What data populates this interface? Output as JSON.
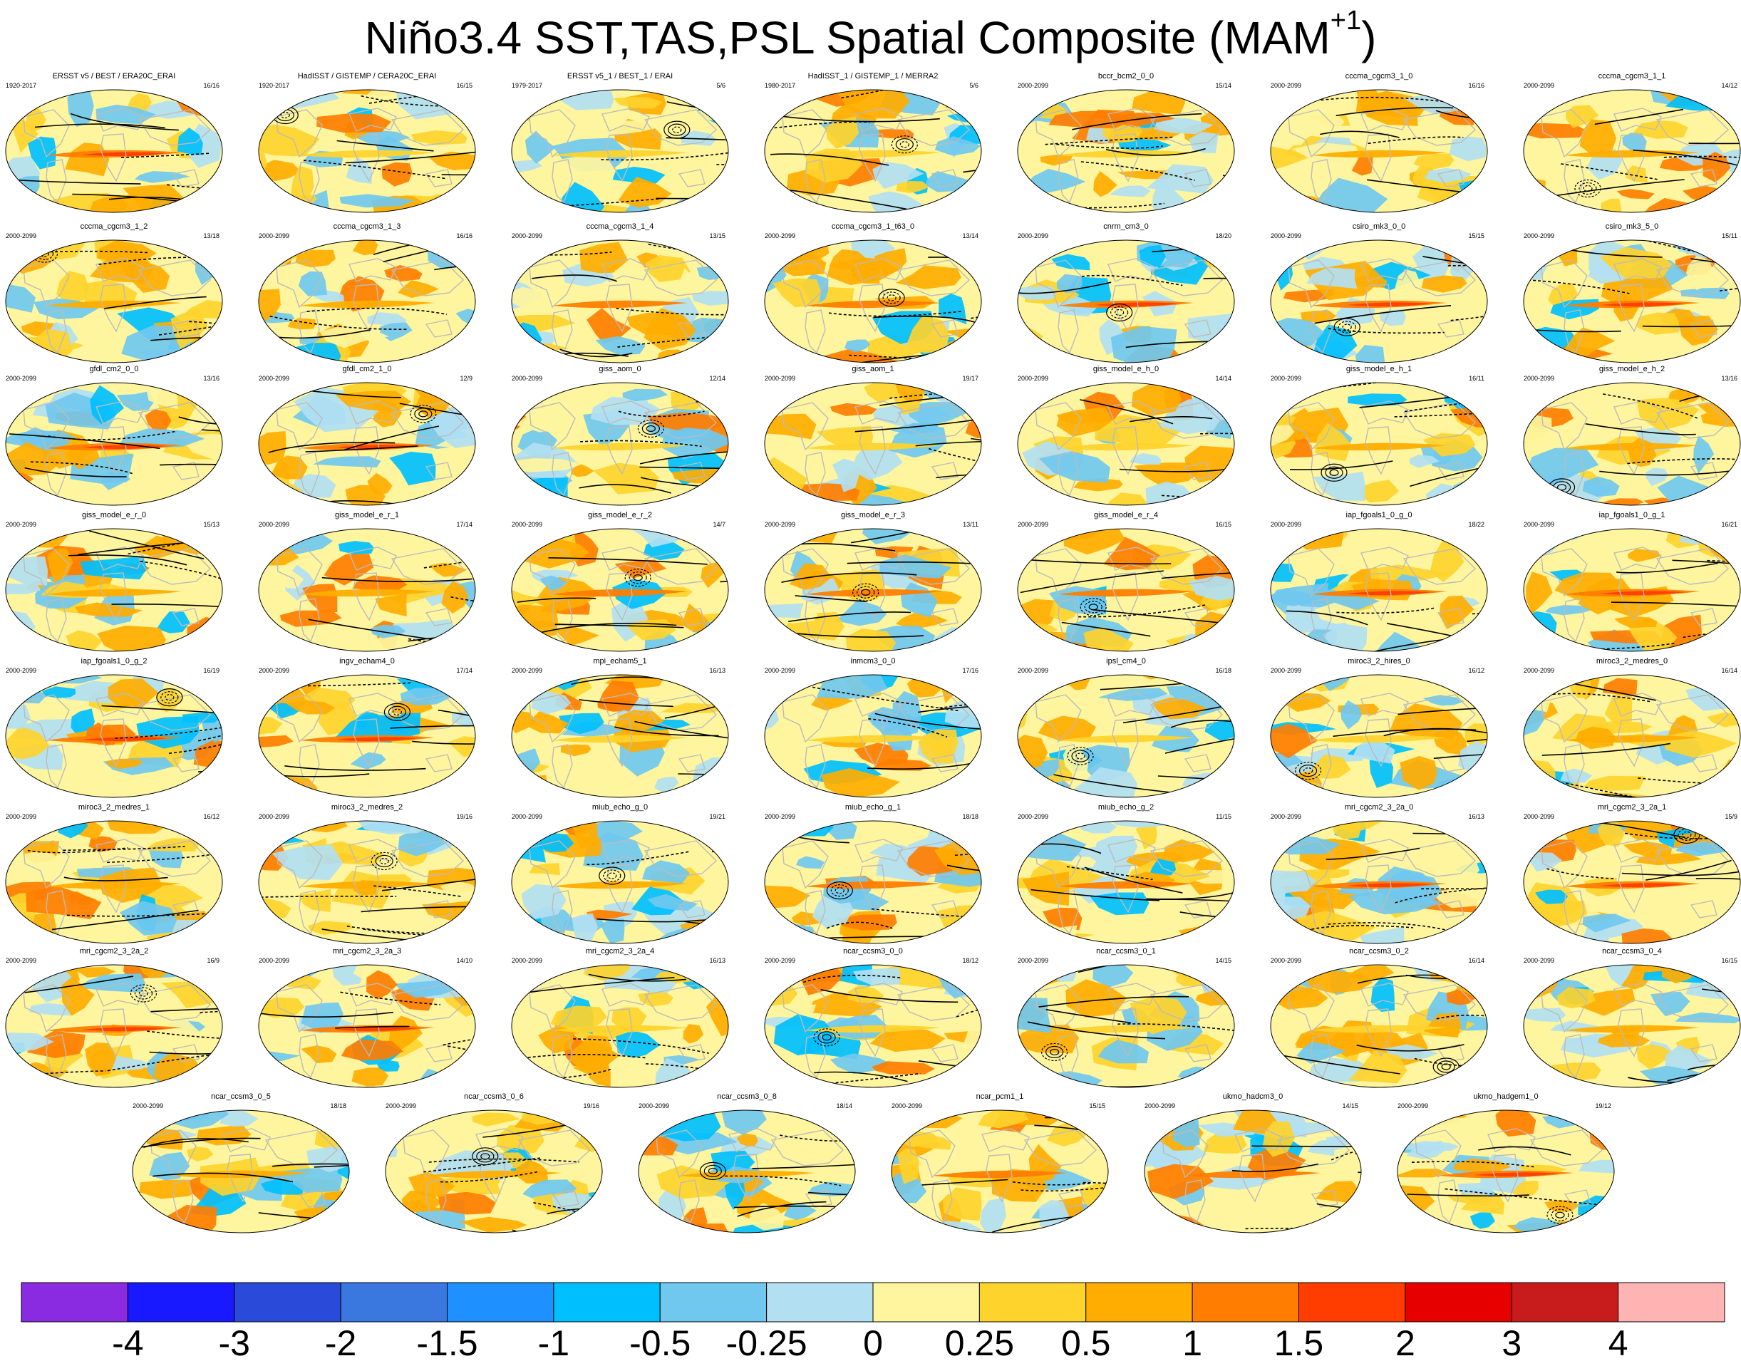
{
  "title_main": "Niño3.4 SST,TAS,PSL Spatial Composite (MAM",
  "title_sup": "+1",
  "title_close": ")",
  "colors": {
    "boxes": [
      "#8a2be2",
      "#1919ff",
      "#2a4bd9",
      "#3a78df",
      "#1e90ff",
      "#00bfff",
      "#70c8ef",
      "#b2dff2",
      "#fef59e",
      "#fed32c",
      "#ffad00",
      "#ff7d00",
      "#ff3d00",
      "#e60000",
      "#c81c1c",
      "#ffb4b4"
    ],
    "land": "#ffffff",
    "coast": "#bbbbbb",
    "contour": "#000000"
  },
  "chart_data": {
    "type": "heatmap",
    "title": "Niño3.4 SST,TAS,PSL Spatial Composite (MAM+1)",
    "colorbar_labels": [
      "-4",
      "-3",
      "-2",
      "-1.5",
      "-1",
      "-0.5",
      "-0.25",
      "0",
      "0.25",
      "0.5",
      "1",
      "1.5",
      "2",
      "3",
      "4"
    ],
    "panels": [
      {
        "name": "ERSST v5 / BEST / ERA20C_ERAI",
        "years": "1920-2017",
        "counts": "16/16"
      },
      {
        "name": "HadISST / GISTEMP / CERA20C_ERAI",
        "years": "1920-2017",
        "counts": "16/15"
      },
      {
        "name": "ERSST v5_1 / BEST_1 / ERAI",
        "years": "1979-2017",
        "counts": "5/6"
      },
      {
        "name": "HadISST_1 / GISTEMP_1 / MERRA2",
        "years": "1980-2017",
        "counts": "5/6"
      },
      {
        "name": "bccr_bcm2_0_0",
        "years": "2000-2099",
        "counts": "15/14"
      },
      {
        "name": "cccma_cgcm3_1_0",
        "years": "2000-2099",
        "counts": "16/16"
      },
      {
        "name": "cccma_cgcm3_1_1",
        "years": "2000-2099",
        "counts": "14/12"
      },
      {
        "name": "cccma_cgcm3_1_2",
        "years": "2000-2099",
        "counts": "13/18"
      },
      {
        "name": "cccma_cgcm3_1_3",
        "years": "2000-2099",
        "counts": "16/16"
      },
      {
        "name": "cccma_cgcm3_1_4",
        "years": "2000-2099",
        "counts": "13/15"
      },
      {
        "name": "cccma_cgcm3_1_t63_0",
        "years": "2000-2099",
        "counts": "13/14"
      },
      {
        "name": "cnrm_cm3_0",
        "years": "2000-2099",
        "counts": "18/20"
      },
      {
        "name": "csiro_mk3_0_0",
        "years": "2000-2099",
        "counts": "15/15"
      },
      {
        "name": "csiro_mk3_5_0",
        "years": "2000-2099",
        "counts": "15/11"
      },
      {
        "name": "gfdl_cm2_0_0",
        "years": "2000-2099",
        "counts": "13/16"
      },
      {
        "name": "gfdl_cm2_1_0",
        "years": "2000-2099",
        "counts": "12/9"
      },
      {
        "name": "giss_aom_0",
        "years": "2000-2099",
        "counts": "12/14"
      },
      {
        "name": "giss_aom_1",
        "years": "2000-2099",
        "counts": "19/17"
      },
      {
        "name": "giss_model_e_h_0",
        "years": "2000-2099",
        "counts": "14/14"
      },
      {
        "name": "giss_model_e_h_1",
        "years": "2000-2099",
        "counts": "16/11"
      },
      {
        "name": "giss_model_e_h_2",
        "years": "2000-2099",
        "counts": "13/16"
      },
      {
        "name": "giss_model_e_r_0",
        "years": "2000-2099",
        "counts": "15/13"
      },
      {
        "name": "giss_model_e_r_1",
        "years": "2000-2099",
        "counts": "17/14"
      },
      {
        "name": "giss_model_e_r_2",
        "years": "2000-2099",
        "counts": "14/7"
      },
      {
        "name": "giss_model_e_r_3",
        "years": "2000-2099",
        "counts": "13/11"
      },
      {
        "name": "giss_model_e_r_4",
        "years": "2000-2099",
        "counts": "16/15"
      },
      {
        "name": "iap_fgoals1_0_g_0",
        "years": "2000-2099",
        "counts": "18/22"
      },
      {
        "name": "iap_fgoals1_0_g_1",
        "years": "2000-2099",
        "counts": "16/21"
      },
      {
        "name": "iap_fgoals1_0_g_2",
        "years": "2000-2099",
        "counts": "16/19"
      },
      {
        "name": "ingv_echam4_0",
        "years": "2000-2099",
        "counts": "17/14"
      },
      {
        "name": "mpi_echam5_1",
        "years": "2000-2099",
        "counts": "16/13"
      },
      {
        "name": "inmcm3_0_0",
        "years": "2000-2099",
        "counts": "17/16"
      },
      {
        "name": "ipsl_cm4_0",
        "years": "2000-2099",
        "counts": "16/18"
      },
      {
        "name": "miroc3_2_hires_0",
        "years": "2000-2099",
        "counts": "16/12"
      },
      {
        "name": "miroc3_2_medres_0",
        "years": "2000-2099",
        "counts": "16/14"
      },
      {
        "name": "miroc3_2_medres_1",
        "years": "2000-2099",
        "counts": "16/12"
      },
      {
        "name": "miroc3_2_medres_2",
        "years": "2000-2099",
        "counts": "19/16"
      },
      {
        "name": "miub_echo_g_0",
        "years": "2000-2099",
        "counts": "19/21"
      },
      {
        "name": "miub_echo_g_1",
        "years": "2000-2099",
        "counts": "18/18"
      },
      {
        "name": "miub_echo_g_2",
        "years": "2000-2099",
        "counts": "11/15"
      },
      {
        "name": "mri_cgcm2_3_2a_0",
        "years": "2000-2099",
        "counts": "16/13"
      },
      {
        "name": "mri_cgcm2_3_2a_1",
        "years": "2000-2099",
        "counts": "15/9"
      },
      {
        "name": "mri_cgcm2_3_2a_2",
        "years": "2000-2099",
        "counts": "16/9"
      },
      {
        "name": "mri_cgcm2_3_2a_3",
        "years": "2000-2099",
        "counts": "14/10"
      },
      {
        "name": "mri_cgcm2_3_2a_4",
        "years": "2000-2099",
        "counts": "16/13"
      },
      {
        "name": "ncar_ccsm3_0_0",
        "years": "2000-2099",
        "counts": "18/12"
      },
      {
        "name": "ncar_ccsm3_0_1",
        "years": "2000-2099",
        "counts": "14/15"
      },
      {
        "name": "ncar_ccsm3_0_2",
        "years": "2000-2099",
        "counts": "16/14"
      },
      {
        "name": "ncar_ccsm3_0_4",
        "years": "2000-2099",
        "counts": "16/15"
      },
      {
        "name": "ncar_ccsm3_0_5",
        "years": "2000-2099",
        "counts": "18/18"
      },
      {
        "name": "ncar_ccsm3_0_6",
        "years": "2000-2099",
        "counts": "19/16"
      },
      {
        "name": "ncar_ccsm3_0_8",
        "years": "2000-2099",
        "counts": "18/14"
      },
      {
        "name": "ncar_pcm1_1",
        "years": "2000-2099",
        "counts": "15/15"
      },
      {
        "name": "ukmo_hadcm3_0",
        "years": "2000-2099",
        "counts": "14/15"
      },
      {
        "name": "ukmo_hadgem1_0",
        "years": "2000-2099",
        "counts": "19/12"
      }
    ]
  }
}
